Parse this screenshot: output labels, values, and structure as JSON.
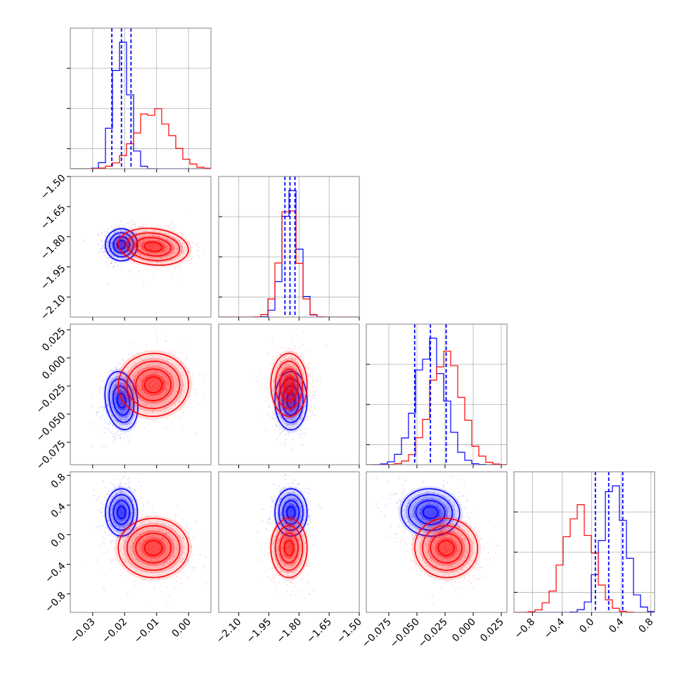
{
  "chart_data": {
    "type": "corner",
    "colors": {
      "blue": "#0000ff",
      "red": "#ff0000",
      "grid": "#b0b0b0",
      "axis": "#808080"
    },
    "params": [
      {
        "range": [
          -0.037,
          0.007
        ],
        "ticks": [
          -0.03,
          -0.02,
          -0.01,
          0.0
        ],
        "tick_labels": [
          "−0.03",
          "−0.02",
          "−0.01",
          "0.00"
        ]
      },
      {
        "range": [
          -2.2,
          -1.5
        ],
        "ticks": [
          -2.1,
          -1.95,
          -1.8,
          -1.65,
          -1.5
        ],
        "tick_labels": [
          "−2.10",
          "−1.95",
          "−1.80",
          "−1.65",
          "−1.50"
        ]
      },
      {
        "range": [
          -0.095,
          0.03
        ],
        "ticks": [
          -0.075,
          -0.05,
          -0.025,
          0.0,
          0.025
        ],
        "tick_labels": [
          "−0.075",
          "−0.050",
          "−0.025",
          "0.000",
          "0.025"
        ]
      },
      {
        "range": [
          -1.05,
          0.85
        ],
        "ticks": [
          -0.8,
          -0.4,
          0.0,
          0.4,
          0.8
        ],
        "tick_labels": [
          "−0.8",
          "−0.4",
          "0.0",
          "0.4",
          "0.8"
        ]
      }
    ],
    "series": [
      {
        "color": "blue",
        "means": [
          -0.021,
          -1.84,
          -0.038,
          0.3
        ],
        "sds": [
          0.0025,
          0.04,
          0.013,
          0.16
        ],
        "corr": [
          [
            1,
            0,
            0.2,
            0
          ],
          [
            0,
            1,
            0,
            0
          ],
          [
            0.2,
            0,
            1,
            -0.1
          ],
          [
            0,
            0,
            -0.1,
            1
          ]
        ]
      },
      {
        "color": "red",
        "means": [
          -0.011,
          -1.85,
          -0.024,
          -0.18
        ],
        "sds": [
          0.0055,
          0.045,
          0.014,
          0.2
        ],
        "corr": [
          [
            1,
            -0.15,
            0.1,
            0
          ],
          [
            -0.15,
            1,
            0,
            0
          ],
          [
            0.1,
            0,
            1,
            -0.2
          ],
          [
            0,
            0,
            -0.2,
            1
          ]
        ]
      }
    ],
    "quantile_lines": [
      [
        -0.024,
        -0.021,
        -0.018
      ],
      [
        -1.87,
        -1.845,
        -1.82
      ],
      [
        -0.052,
        -0.038,
        -0.024
      ],
      [
        0.05,
        0.23,
        0.42
      ]
    ],
    "grid": true
  }
}
